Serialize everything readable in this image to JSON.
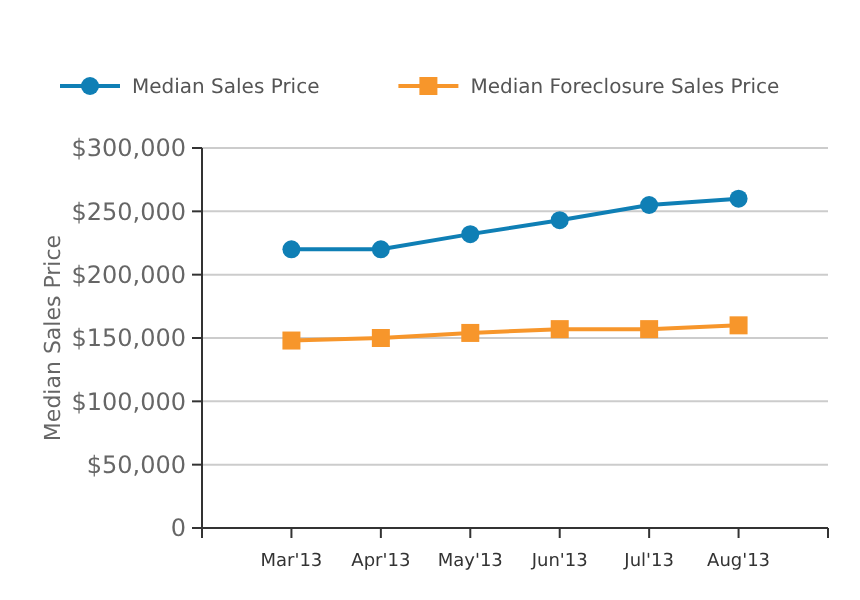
{
  "chart_data": {
    "type": "line",
    "ylabel": "Median Sales Price",
    "categories": [
      null,
      "Mar'13",
      "Apr'13",
      "May'13",
      "Jun'13",
      "Jul'13",
      "Aug'13",
      null
    ],
    "series": [
      {
        "name": "Median Sales Price",
        "color": "#0f7fb5",
        "marker": "circle",
        "values": [
          null,
          220000,
          220000,
          232000,
          243000,
          255000,
          260000,
          null
        ]
      },
      {
        "name": "Median Foreclosure Sales Price",
        "color": "#f7962b",
        "marker": "square",
        "values": [
          null,
          148000,
          150000,
          154000,
          157000,
          157000,
          160000,
          null
        ]
      }
    ],
    "ylim": [
      0,
      300000
    ],
    "yticks": [
      {
        "value": 0,
        "label": "0"
      },
      {
        "value": 50000,
        "label": "$50,000"
      },
      {
        "value": 100000,
        "label": "$100,000"
      },
      {
        "value": 150000,
        "label": "$150,000"
      },
      {
        "value": 200000,
        "label": "$200,000"
      },
      {
        "value": 250000,
        "label": "$250,000"
      },
      {
        "value": 300000,
        "label": "$300,000"
      }
    ],
    "grid": "y",
    "legend": "top"
  }
}
